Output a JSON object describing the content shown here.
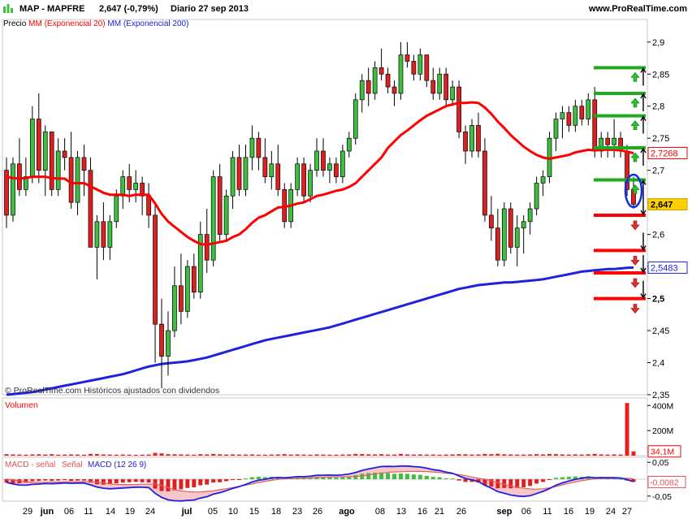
{
  "header": {
    "title": "MAP - MAPFRE",
    "price_change": "2,647 (-0,79%)",
    "period": "Diario  27 sep 2013",
    "site": "www.ProRealTime.com"
  },
  "legend": {
    "precio": "Precio",
    "mm20": "MM (Exponencial 20)",
    "mm200": "MM (Exponencial 200)"
  },
  "credit": "© ProRealTime.com Históricos ajustados con dividendos",
  "volume_label": "Volumen",
  "macd_label_1": "MACD - señal",
  "macd_label_2": "Señal",
  "macd_label_3": "MACD (12 26 9)",
  "price_axis": {
    "ticks": [
      "2,9",
      "2,85",
      "2,8",
      "2,75",
      "2,7",
      "2,65",
      "2,6",
      "2,55",
      "2,5",
      "2,45",
      "2,4",
      "2,35"
    ],
    "tag_mm20": "2,7268",
    "tag_last": "2,647",
    "tag_mm200": "2,5483"
  },
  "volume_axis": {
    "ticks": [
      "400M",
      "200M"
    ],
    "tag": "34,1M"
  },
  "macd_axis": {
    "ticks": [
      "0,05",
      "-0,05"
    ],
    "tag": "-0,0082"
  },
  "x_axis": {
    "labels": [
      "29",
      "jun",
      "06",
      "11",
      "14",
      "19",
      "24",
      "jul",
      "05",
      "10",
      "15",
      "18",
      "23",
      "26",
      "ago",
      "08",
      "13",
      "16",
      "21",
      "26",
      "sep",
      "06",
      "11",
      "16",
      "19",
      "24",
      "27"
    ]
  },
  "colors": {
    "up": "#3fbf3f",
    "down": "#e02020",
    "ema20": "#ff0000",
    "ema200": "#2020e0",
    "support": "#ff0000",
    "resistance": "#1faa1f"
  },
  "chart_data": {
    "type": "candlestick",
    "title": "MAP - MAPFRE",
    "period": "Diario",
    "date": "27 sep 2013",
    "last": 2.647,
    "ylim": [
      2.35,
      2.92
    ],
    "ohlc": [
      [
        2.7,
        2.72,
        2.61,
        2.63
      ],
      [
        2.63,
        2.72,
        2.62,
        2.71
      ],
      [
        2.71,
        2.75,
        2.66,
        2.67
      ],
      [
        2.67,
        2.72,
        2.66,
        2.69
      ],
      [
        2.69,
        2.8,
        2.68,
        2.78
      ],
      [
        2.78,
        2.82,
        2.68,
        2.7
      ],
      [
        2.7,
        2.77,
        2.66,
        2.76
      ],
      [
        2.76,
        2.76,
        2.66,
        2.67
      ],
      [
        2.67,
        2.75,
        2.66,
        2.73
      ],
      [
        2.73,
        2.75,
        2.7,
        2.72
      ],
      [
        2.72,
        2.76,
        2.64,
        2.65
      ],
      [
        2.65,
        2.73,
        2.63,
        2.72
      ],
      [
        2.72,
        2.74,
        2.66,
        2.7
      ],
      [
        2.7,
        2.72,
        2.58,
        2.58
      ],
      [
        2.58,
        2.63,
        2.53,
        2.62
      ],
      [
        2.62,
        2.65,
        2.56,
        2.58
      ],
      [
        2.58,
        2.63,
        2.56,
        2.62
      ],
      [
        2.62,
        2.67,
        2.61,
        2.66
      ],
      [
        2.66,
        2.7,
        2.64,
        2.69
      ],
      [
        2.69,
        2.71,
        2.65,
        2.67
      ],
      [
        2.67,
        2.7,
        2.65,
        2.68
      ],
      [
        2.68,
        2.69,
        2.63,
        2.66
      ],
      [
        2.66,
        2.68,
        2.61,
        2.63
      ],
      [
        2.63,
        2.65,
        2.4,
        2.46
      ],
      [
        2.46,
        2.5,
        2.36,
        2.41
      ],
      [
        2.41,
        2.48,
        2.38,
        2.45
      ],
      [
        2.45,
        2.55,
        2.44,
        2.52
      ],
      [
        2.52,
        2.57,
        2.46,
        2.48
      ],
      [
        2.48,
        2.56,
        2.47,
        2.55
      ],
      [
        2.55,
        2.57,
        2.5,
        2.51
      ],
      [
        2.51,
        2.62,
        2.5,
        2.6
      ],
      [
        2.6,
        2.64,
        2.54,
        2.56
      ],
      [
        2.56,
        2.7,
        2.55,
        2.69
      ],
      [
        2.69,
        2.71,
        2.59,
        2.6
      ],
      [
        2.6,
        2.67,
        2.59,
        2.66
      ],
      [
        2.66,
        2.73,
        2.64,
        2.72
      ],
      [
        2.72,
        2.74,
        2.66,
        2.67
      ],
      [
        2.67,
        2.74,
        2.66,
        2.72
      ],
      [
        2.72,
        2.77,
        2.7,
        2.75
      ],
      [
        2.75,
        2.76,
        2.7,
        2.72
      ],
      [
        2.72,
        2.75,
        2.68,
        2.69
      ],
      [
        2.69,
        2.73,
        2.67,
        2.71
      ],
      [
        2.71,
        2.74,
        2.66,
        2.67
      ],
      [
        2.67,
        2.68,
        2.61,
        2.62
      ],
      [
        2.62,
        2.68,
        2.61,
        2.67
      ],
      [
        2.67,
        2.72,
        2.66,
        2.71
      ],
      [
        2.71,
        2.72,
        2.65,
        2.66
      ],
      [
        2.66,
        2.71,
        2.65,
        2.7
      ],
      [
        2.7,
        2.75,
        2.69,
        2.73
      ],
      [
        2.73,
        2.75,
        2.69,
        2.7
      ],
      [
        2.7,
        2.72,
        2.68,
        2.71
      ],
      [
        2.71,
        2.72,
        2.68,
        2.69
      ],
      [
        2.69,
        2.74,
        2.68,
        2.73
      ],
      [
        2.73,
        2.76,
        2.72,
        2.75
      ],
      [
        2.75,
        2.82,
        2.74,
        2.81
      ],
      [
        2.81,
        2.85,
        2.79,
        2.84
      ],
      [
        2.84,
        2.86,
        2.8,
        2.82
      ],
      [
        2.82,
        2.87,
        2.81,
        2.86
      ],
      [
        2.86,
        2.89,
        2.84,
        2.85
      ],
      [
        2.85,
        2.86,
        2.82,
        2.83
      ],
      [
        2.83,
        2.84,
        2.8,
        2.82
      ],
      [
        2.82,
        2.9,
        2.81,
        2.88
      ],
      [
        2.88,
        2.9,
        2.86,
        2.87
      ],
      [
        2.87,
        2.88,
        2.84,
        2.85
      ],
      [
        2.85,
        2.89,
        2.84,
        2.88
      ],
      [
        2.88,
        2.88,
        2.83,
        2.84
      ],
      [
        2.84,
        2.86,
        2.81,
        2.82
      ],
      [
        2.82,
        2.86,
        2.81,
        2.85
      ],
      [
        2.85,
        2.86,
        2.8,
        2.81
      ],
      [
        2.81,
        2.84,
        2.8,
        2.83
      ],
      [
        2.83,
        2.84,
        2.75,
        2.76
      ],
      [
        2.76,
        2.77,
        2.71,
        2.73
      ],
      [
        2.73,
        2.78,
        2.72,
        2.77
      ],
      [
        2.77,
        2.79,
        2.72,
        2.73
      ],
      [
        2.73,
        2.75,
        2.62,
        2.63
      ],
      [
        2.63,
        2.66,
        2.59,
        2.61
      ],
      [
        2.61,
        2.64,
        2.55,
        2.56
      ],
      [
        2.56,
        2.65,
        2.55,
        2.64
      ],
      [
        2.64,
        2.65,
        2.57,
        2.58
      ],
      [
        2.58,
        2.63,
        2.55,
        2.61
      ],
      [
        2.61,
        2.63,
        2.57,
        2.62
      ],
      [
        2.62,
        2.65,
        2.6,
        2.64
      ],
      [
        2.64,
        2.69,
        2.63,
        2.68
      ],
      [
        2.68,
        2.7,
        2.66,
        2.69
      ],
      [
        2.69,
        2.76,
        2.68,
        2.75
      ],
      [
        2.75,
        2.79,
        2.73,
        2.78
      ],
      [
        2.78,
        2.8,
        2.75,
        2.79
      ],
      [
        2.79,
        2.8,
        2.76,
        2.77
      ],
      [
        2.77,
        2.81,
        2.76,
        2.8
      ],
      [
        2.8,
        2.81,
        2.77,
        2.78
      ],
      [
        2.78,
        2.82,
        2.77,
        2.81
      ],
      [
        2.81,
        2.83,
        2.72,
        2.73
      ],
      [
        2.73,
        2.76,
        2.72,
        2.75
      ],
      [
        2.75,
        2.76,
        2.72,
        2.74
      ],
      [
        2.74,
        2.78,
        2.72,
        2.75
      ],
      [
        2.75,
        2.76,
        2.72,
        2.73
      ],
      [
        2.73,
        2.74,
        2.66,
        2.67
      ],
      [
        2.67,
        2.69,
        2.64,
        2.647
      ]
    ],
    "ema20": [
      2.69,
      2.688,
      2.687,
      2.688,
      2.69,
      2.69,
      2.69,
      2.688,
      2.687,
      2.687,
      2.68,
      2.68,
      2.68,
      2.675,
      2.67,
      2.665,
      2.662,
      2.662,
      2.662,
      2.66,
      2.662,
      2.662,
      2.662,
      2.648,
      2.632,
      2.62,
      2.612,
      2.604,
      2.596,
      2.59,
      2.585,
      2.584,
      2.586,
      2.588,
      2.59,
      2.596,
      2.6,
      2.608,
      2.618,
      2.626,
      2.63,
      2.636,
      2.642,
      2.643,
      2.645,
      2.648,
      2.65,
      2.655,
      2.66,
      2.662,
      2.665,
      2.668,
      2.67,
      2.674,
      2.68,
      2.69,
      2.7,
      2.71,
      2.72,
      2.735,
      2.745,
      2.755,
      2.762,
      2.77,
      2.778,
      2.785,
      2.79,
      2.795,
      2.8,
      2.803,
      2.805,
      2.805,
      2.806,
      2.805,
      2.798,
      2.788,
      2.776,
      2.766,
      2.755,
      2.746,
      2.737,
      2.73,
      2.724,
      2.72,
      2.718,
      2.72,
      2.722,
      2.724,
      2.728,
      2.73,
      2.732,
      2.731,
      2.732,
      2.732,
      2.732,
      2.731,
      2.729,
      2.7268
    ],
    "ema200": [
      2.35,
      2.351,
      2.352,
      2.353,
      2.354,
      2.356,
      2.358,
      2.36,
      2.362,
      2.364,
      2.366,
      2.368,
      2.37,
      2.372,
      2.374,
      2.376,
      2.378,
      2.38,
      2.382,
      2.385,
      2.388,
      2.391,
      2.394,
      2.396,
      2.398,
      2.399,
      2.4,
      2.401,
      2.402,
      2.404,
      2.406,
      2.408,
      2.411,
      2.414,
      2.417,
      2.42,
      2.423,
      2.426,
      2.429,
      2.432,
      2.435,
      2.437,
      2.439,
      2.441,
      2.443,
      2.445,
      2.447,
      2.449,
      2.451,
      2.453,
      2.455,
      2.458,
      2.461,
      2.464,
      2.467,
      2.47,
      2.473,
      2.476,
      2.479,
      2.482,
      2.485,
      2.488,
      2.491,
      2.494,
      2.497,
      2.5,
      2.503,
      2.506,
      2.509,
      2.512,
      2.515,
      2.517,
      2.519,
      2.521,
      2.522,
      2.523,
      2.524,
      2.525,
      2.525,
      2.526,
      2.527,
      2.528,
      2.529,
      2.53,
      2.532,
      2.534,
      2.536,
      2.538,
      2.54,
      2.542,
      2.543,
      2.544,
      2.545,
      2.546,
      2.546,
      2.547,
      2.548,
      2.5483
    ],
    "support_levels": [
      2.63,
      2.575,
      2.54,
      2.5
    ],
    "resistance_levels": [
      2.86,
      2.82,
      2.785,
      2.735,
      2.685
    ],
    "volume": [
      12,
      10,
      9,
      8,
      10,
      11,
      9,
      12,
      8,
      9,
      10,
      9,
      8,
      14,
      13,
      10,
      9,
      8,
      9,
      8,
      7,
      8,
      9,
      22,
      18,
      12,
      11,
      10,
      9,
      8,
      12,
      10,
      14,
      11,
      9,
      10,
      9,
      9,
      10,
      8,
      8,
      9,
      10,
      12,
      9,
      10,
      9,
      8,
      10,
      9,
      8,
      8,
      9,
      10,
      14,
      13,
      11,
      10,
      12,
      9,
      9,
      14,
      10,
      9,
      10,
      9,
      9,
      8,
      9,
      10,
      12,
      11,
      9,
      10,
      14,
      12,
      15,
      11,
      10,
      9,
      9,
      10,
      12,
      10,
      13,
      12,
      10,
      9,
      10,
      9,
      11,
      14,
      10,
      9,
      10,
      9,
      420,
      34.1
    ],
    "volume_unit": "M",
    "macd_hist": [
      -0.01,
      -0.012,
      -0.012,
      -0.01,
      -0.006,
      -0.005,
      -0.004,
      -0.005,
      -0.004,
      -0.003,
      -0.005,
      -0.004,
      -0.004,
      -0.01,
      -0.015,
      -0.016,
      -0.015,
      -0.012,
      -0.01,
      -0.009,
      -0.008,
      -0.009,
      -0.01,
      -0.028,
      -0.035,
      -0.036,
      -0.033,
      -0.03,
      -0.026,
      -0.024,
      -0.018,
      -0.016,
      -0.01,
      -0.009,
      -0.006,
      -0.002,
      -0.001,
      0.002,
      0.006,
      0.007,
      0.006,
      0.007,
      0.006,
      0.003,
      0.004,
      0.005,
      0.004,
      0.005,
      0.007,
      0.006,
      0.006,
      0.005,
      0.006,
      0.008,
      0.012,
      0.016,
      0.018,
      0.019,
      0.02,
      0.018,
      0.016,
      0.017,
      0.016,
      0.014,
      0.013,
      0.01,
      0.007,
      0.006,
      0.003,
      0.002,
      -0.004,
      -0.008,
      -0.008,
      -0.01,
      -0.018,
      -0.022,
      -0.027,
      -0.026,
      -0.027,
      -0.026,
      -0.024,
      -0.02,
      -0.013,
      -0.008,
      -0.002,
      0.004,
      0.006,
      0.007,
      0.008,
      0.007,
      0.008,
      0.003,
      0.003,
      0.002,
      0.002,
      0.001,
      -0.004,
      -0.0082
    ]
  }
}
